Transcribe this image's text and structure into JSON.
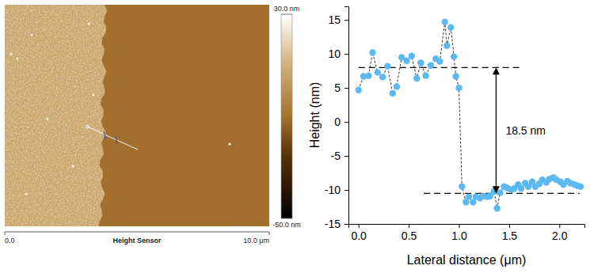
{
  "afm_image": {
    "colorbar": {
      "range": [
        -50,
        30
      ],
      "ticks": [
        {
          "value": 30,
          "label": "30.0 nm"
        },
        {
          "value": -50,
          "label": "-50.0 nm"
        }
      ]
    },
    "axis": {
      "title": "Height Sensor",
      "range": [
        0,
        10
      ],
      "ticks": [
        {
          "value": 0,
          "label": "0.0"
        },
        {
          "value": 10,
          "label": "10.0 μm"
        }
      ]
    }
  },
  "chart_data": {
    "type": "scatter",
    "xlabel": "Lateral distance (μm)",
    "ylabel": "Height (nm)",
    "x": [
      0,
      0.05,
      0.1,
      0.14,
      0.19,
      0.24,
      0.29,
      0.34,
      0.38,
      0.43,
      0.48,
      0.53,
      0.58,
      0.62,
      0.67,
      0.72,
      0.77,
      0.81,
      0.86,
      0.88,
      0.92,
      0.95,
      0.97,
      1.0,
      1.03,
      1.07,
      1.1,
      1.14,
      1.17,
      1.21,
      1.24,
      1.28,
      1.31,
      1.35,
      1.38,
      1.41,
      1.45,
      1.48,
      1.52,
      1.55,
      1.59,
      1.62,
      1.66,
      1.69,
      1.73,
      1.76,
      1.8,
      1.83,
      1.87,
      1.9,
      1.94,
      1.97,
      2.01,
      2.04,
      2.08,
      2.11,
      2.15,
      2.18,
      2.21
    ],
    "values": [
      4.7,
      6.7,
      6.8,
      10.2,
      7.3,
      6.6,
      8.2,
      4.2,
      5.2,
      9.5,
      9.0,
      9.7,
      6.4,
      8.7,
      6.8,
      8.3,
      9.3,
      8.9,
      14.7,
      11.2,
      13.9,
      9.6,
      6.7,
      5.0,
      -9.5,
      -11.8,
      -11.0,
      -11.8,
      -11.0,
      -11.2,
      -10.9,
      -11.0,
      -10.9,
      -10.2,
      -12.7,
      -10.4,
      -9.5,
      -9.7,
      -10.0,
      -9.8,
      -9.2,
      -9.8,
      -9.0,
      -9.5,
      -8.8,
      -9.5,
      -9.1,
      -8.5,
      -8.9,
      -8.4,
      -8.2,
      -8.5,
      -8.8,
      -9.2,
      -8.7,
      -9.0,
      -9.2,
      -9.4,
      -9.5
    ],
    "color": "#5bb8f0",
    "marker": "circle",
    "line_style": "dashed",
    "xlim": [
      -0.1,
      2.25
    ],
    "ylim": [
      -15,
      17
    ],
    "xticks": [
      {
        "value": 0,
        "label": "0.0"
      },
      0.5,
      {
        "value": 1,
        "label": "1.0"
      },
      1.5,
      {
        "value": 2,
        "label": "2.0"
      }
    ],
    "yticks": [
      -15,
      -10,
      -5,
      0,
      5,
      10,
      15
    ],
    "reference_lines": [
      {
        "y": 8,
        "x": [
          0,
          1.6
        ]
      },
      {
        "y": -10.5,
        "x": [
          0.65,
          2.2
        ]
      }
    ],
    "annotation": {
      "label": "18.5 nm",
      "value": 18.5,
      "x": 1.37
    }
  }
}
